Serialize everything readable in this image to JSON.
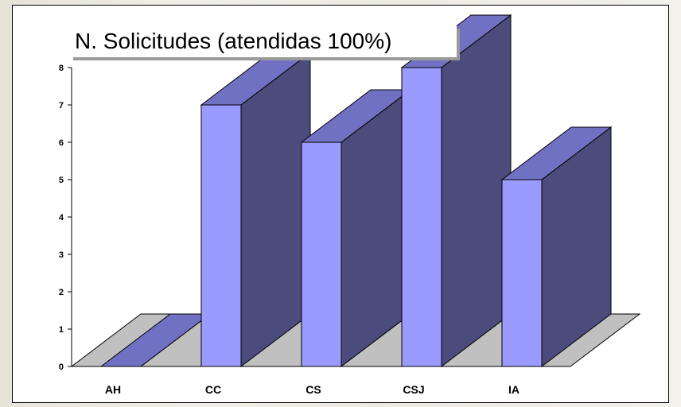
{
  "chart_data": {
    "type": "bar",
    "title": "N. Solicitudes (atendidas 100%)",
    "xlabel": "",
    "ylabel": "",
    "categories": [
      "AH",
      "CC",
      "CS",
      "CSJ",
      "IA"
    ],
    "values": [
      0,
      7,
      6,
      8,
      5
    ],
    "ylim": [
      0,
      8
    ],
    "yticks": [
      "0",
      "1",
      "2",
      "3",
      "4",
      "5",
      "6",
      "7",
      "8"
    ],
    "grid": false,
    "legend": "none",
    "style": "3d-column",
    "colors": {
      "front": "#9b9bff",
      "top": "#7171c3",
      "side": "#4b4b7c",
      "floor": "#c0c0c0",
      "outline": "#000000"
    }
  }
}
